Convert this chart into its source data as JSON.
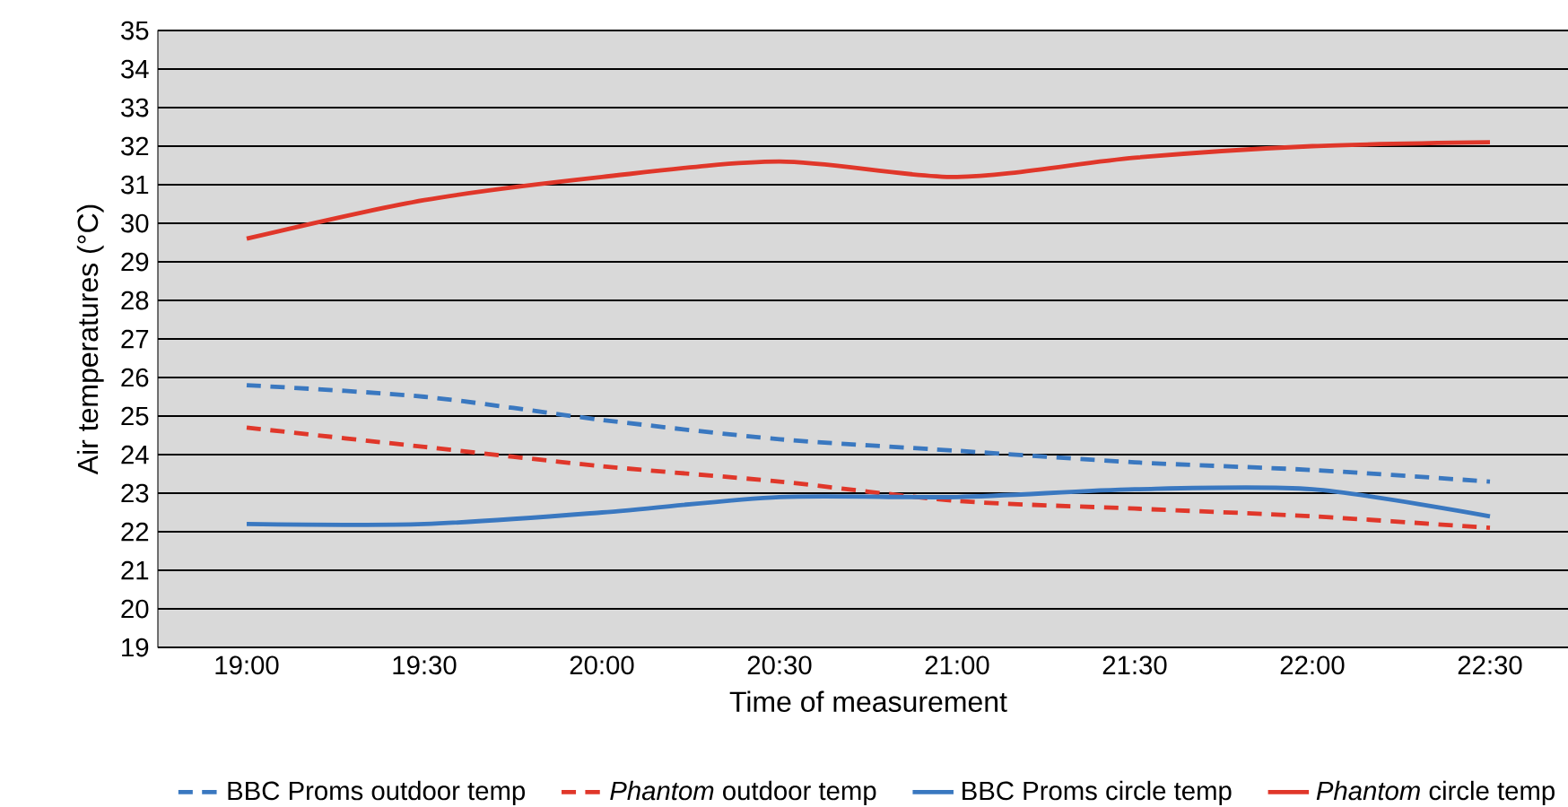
{
  "chart_data": {
    "type": "line",
    "xlabel": "Time of measurement",
    "ylabel": "Air temperatures (°C)",
    "categories": [
      "19:00",
      "19:30",
      "20:00",
      "20:30",
      "21:00",
      "21:30",
      "22:00",
      "22:30"
    ],
    "ylim": [
      19,
      35
    ],
    "yticks": [
      19,
      20,
      21,
      22,
      23,
      24,
      25,
      26,
      27,
      28,
      29,
      30,
      31,
      32,
      33,
      34,
      35
    ],
    "grid": "y",
    "legend": "bottom",
    "series": [
      {
        "name": "BBC Proms outdoor temp",
        "color": "#3a78c0",
        "line_style": "dashed",
        "values": [
          25.8,
          25.5,
          24.9,
          24.4,
          24.1,
          23.8,
          23.6,
          23.3
        ]
      },
      {
        "name": "*Phantom* outdoor temp",
        "color": "#e0372a",
        "line_style": "dashed",
        "values": [
          24.7,
          24.2,
          23.7,
          23.3,
          22.8,
          22.6,
          22.4,
          22.1
        ]
      },
      {
        "name": "BBC Proms circle temp",
        "color": "#3a78c0",
        "line_style": "solid",
        "values": [
          22.2,
          22.2,
          22.5,
          22.9,
          22.9,
          23.1,
          23.1,
          22.4
        ]
      },
      {
        "name": "*Phantom* circle temp",
        "color": "#e0372a",
        "line_style": "solid",
        "values": [
          29.6,
          30.6,
          31.2,
          31.6,
          31.2,
          31.7,
          32.0,
          32.1
        ]
      }
    ]
  }
}
